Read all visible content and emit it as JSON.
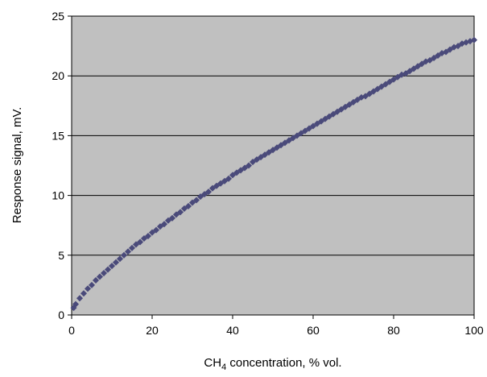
{
  "chart_data": {
    "type": "scatter",
    "title": "",
    "xlabel_main": "CH",
    "xlabel_sub": "4",
    "xlabel_rest": " concentration, % vol.",
    "ylabel": "Response signal, mV.",
    "xlim": [
      0,
      100
    ],
    "ylim": [
      0,
      25
    ],
    "xticks": [
      0,
      20,
      40,
      60,
      80,
      100
    ],
    "yticks": [
      0,
      5,
      10,
      15,
      20,
      25
    ],
    "grid": "horizontal",
    "plot_background": "#c0c0c0",
    "marker_color": "#4a4a7a",
    "series": [
      {
        "marker": "diamond",
        "x": [
          0.5,
          1,
          2,
          3,
          4,
          5,
          6,
          7,
          8,
          9,
          10,
          11,
          12,
          13,
          14,
          15,
          16,
          17,
          18,
          19,
          20,
          21,
          22,
          23,
          24,
          25,
          26,
          27,
          28,
          29,
          30,
          31,
          32,
          33,
          34,
          35,
          36,
          37,
          38,
          39,
          40,
          41,
          42,
          43,
          44,
          45,
          46,
          47,
          48,
          49,
          50,
          51,
          52,
          53,
          54,
          55,
          56,
          57,
          58,
          59,
          60,
          61,
          62,
          63,
          64,
          65,
          66,
          67,
          68,
          69,
          70,
          71,
          72,
          73,
          74,
          75,
          76,
          77,
          78,
          79,
          80,
          81,
          82,
          83,
          84,
          85,
          86,
          87,
          88,
          89,
          90,
          91,
          92,
          93,
          94,
          95,
          96,
          97,
          98,
          99,
          100
        ],
        "y": [
          0.6,
          0.9,
          1.4,
          1.8,
          2.2,
          2.5,
          2.9,
          3.2,
          3.5,
          3.8,
          4.1,
          4.4,
          4.7,
          5.0,
          5.3,
          5.6,
          5.9,
          6.1,
          6.4,
          6.6,
          6.9,
          7.1,
          7.4,
          7.6,
          7.9,
          8.1,
          8.4,
          8.6,
          8.9,
          9.1,
          9.4,
          9.6,
          9.9,
          10.1,
          10.3,
          10.6,
          10.8,
          11.0,
          11.2,
          11.4,
          11.7,
          11.9,
          12.1,
          12.3,
          12.5,
          12.8,
          13.0,
          13.2,
          13.4,
          13.6,
          13.8,
          14.0,
          14.2,
          14.4,
          14.6,
          14.8,
          15.0,
          15.2,
          15.4,
          15.6,
          15.8,
          16.0,
          16.2,
          16.4,
          16.6,
          16.8,
          17.0,
          17.2,
          17.4,
          17.6,
          17.8,
          18.0,
          18.2,
          18.3,
          18.5,
          18.7,
          18.9,
          19.1,
          19.3,
          19.5,
          19.7,
          19.9,
          20.1,
          20.2,
          20.4,
          20.6,
          20.8,
          21.0,
          21.2,
          21.3,
          21.5,
          21.7,
          21.9,
          22.0,
          22.2,
          22.4,
          22.5,
          22.7,
          22.8,
          22.9,
          23.0
        ]
      }
    ]
  }
}
